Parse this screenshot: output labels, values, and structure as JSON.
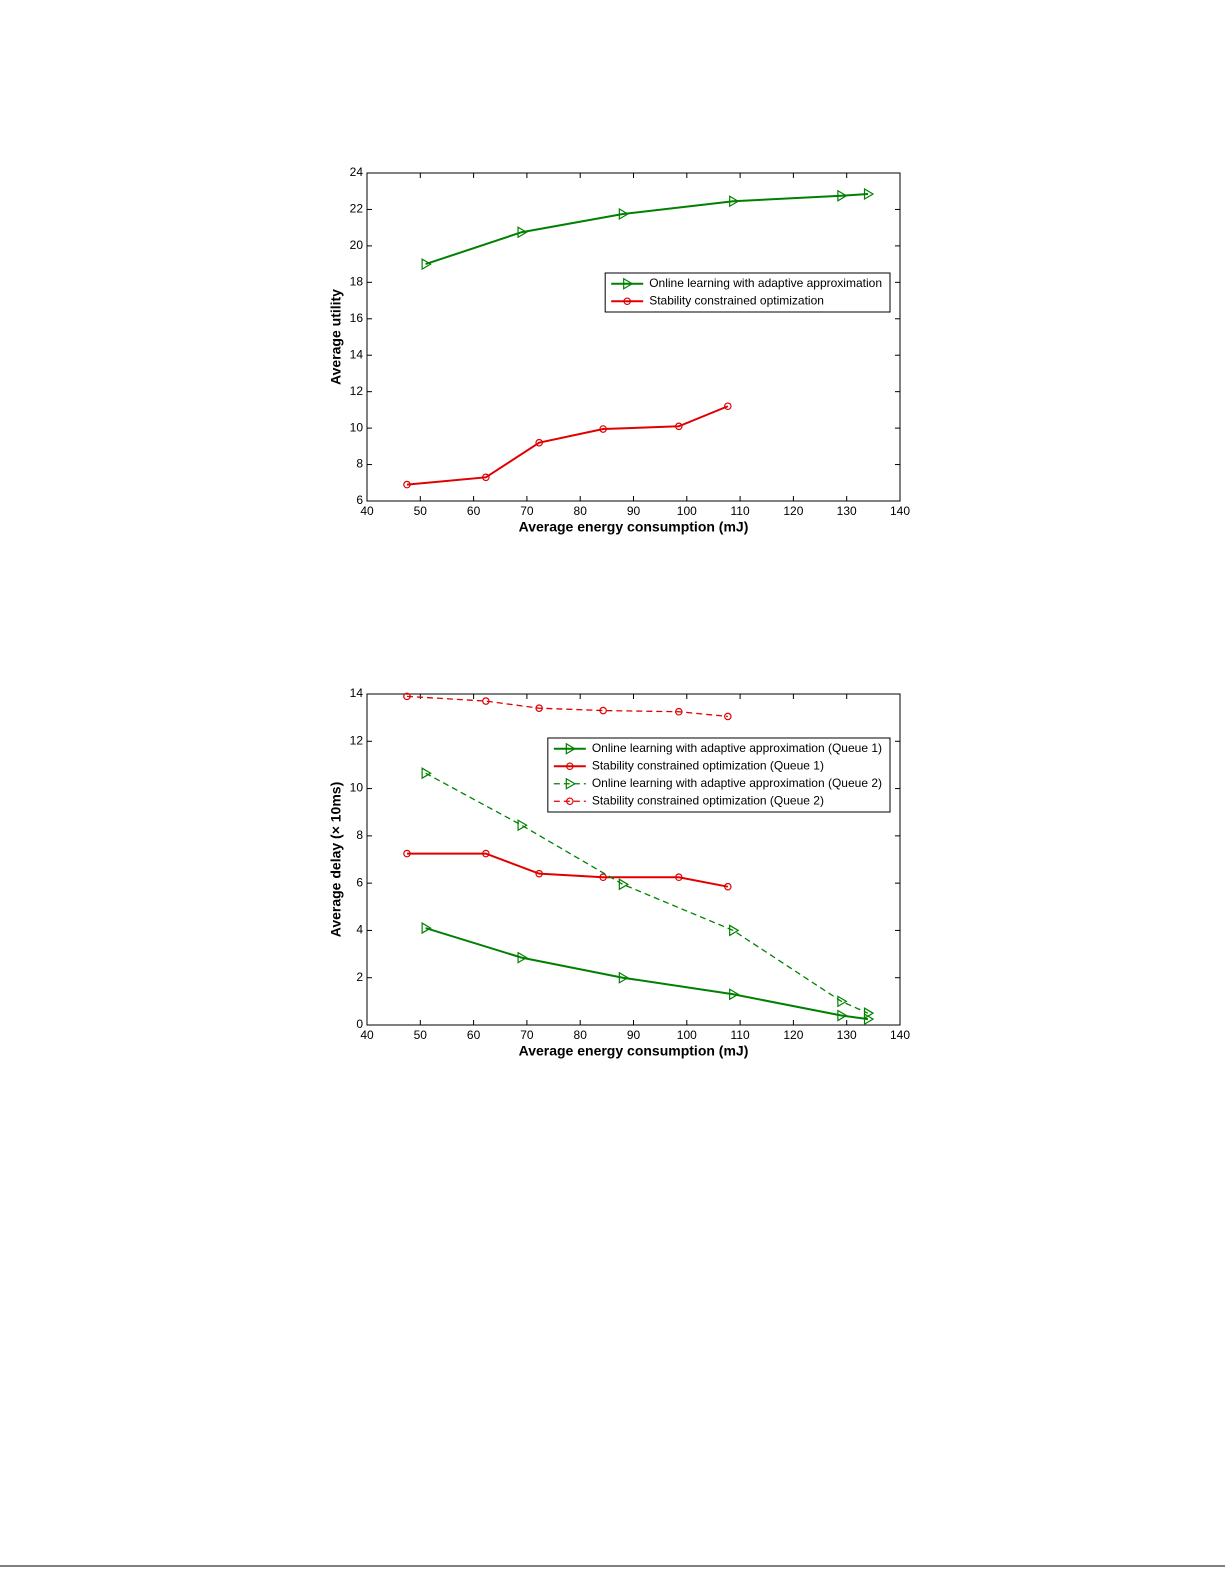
{
  "chart_data": [
    {
      "type": "line",
      "xlabel": "Average energy consumption (mJ)",
      "ylabel": "Average utility",
      "xlim": [
        40,
        140
      ],
      "xticks": [
        40,
        50,
        60,
        70,
        80,
        90,
        100,
        110,
        120,
        130,
        140
      ],
      "ylim": [
        6,
        24
      ],
      "yticks": [
        6,
        8,
        10,
        12,
        14,
        16,
        18,
        20,
        22,
        24
      ],
      "legend": "center right",
      "series": [
        {
          "name": "Online learning with adaptive approximation",
          "color": "#008000",
          "marker": "triangle-right",
          "linestyle": "solid",
          "x": [
            51,
            69,
            88,
            108.7,
            129,
            134
          ],
          "values": [
            19.0,
            20.75,
            21.75,
            22.45,
            22.75,
            22.85
          ]
        },
        {
          "name": "Stability constrained optimization",
          "color": "#e00000",
          "marker": "circle",
          "linestyle": "solid",
          "x": [
            47.5,
            62.3,
            72.3,
            84.3,
            98.5,
            107.7
          ],
          "values": [
            6.9,
            7.3,
            9.2,
            9.95,
            10.1,
            11.2
          ]
        }
      ]
    },
    {
      "type": "line",
      "xlabel": "Average energy consumption (mJ)",
      "ylabel": "Average delay (× 10ms)",
      "xlim": [
        40,
        140
      ],
      "xticks": [
        40,
        50,
        60,
        70,
        80,
        90,
        100,
        110,
        120,
        130,
        140
      ],
      "ylim": [
        0,
        14
      ],
      "yticks": [
        0,
        2,
        4,
        6,
        8,
        10,
        12,
        14
      ],
      "legend": "upper right",
      "series": [
        {
          "name": "Online learning with adaptive approximation (Queue 1)",
          "color": "#008000",
          "marker": "triangle-right",
          "linestyle": "solid",
          "x": [
            51,
            69,
            88,
            108.7,
            129,
            134
          ],
          "values": [
            4.1,
            2.85,
            2.0,
            1.3,
            0.4,
            0.25
          ]
        },
        {
          "name": "Stability constrained optimization (Queue 1)",
          "color": "#e00000",
          "marker": "circle",
          "linestyle": "solid",
          "x": [
            47.5,
            62.3,
            72.3,
            84.3,
            98.5,
            107.7
          ],
          "values": [
            7.25,
            7.25,
            6.4,
            6.25,
            6.25,
            5.85
          ]
        },
        {
          "name": "Online learning with adaptive approximation (Queue 2)",
          "color": "#008000",
          "marker": "triangle-right",
          "linestyle": "dashed",
          "x": [
            51,
            69,
            88,
            108.7,
            129,
            134
          ],
          "values": [
            10.65,
            8.45,
            5.95,
            4.0,
            1.0,
            0.5
          ]
        },
        {
          "name": "Stability constrained optimization (Queue 2)",
          "color": "#e00000",
          "marker": "circle",
          "linestyle": "dashed",
          "x": [
            47.5,
            62.3,
            72.3,
            84.3,
            98.5,
            107.7
          ],
          "values": [
            13.9,
            13.7,
            13.4,
            13.3,
            13.25,
            13.05
          ]
        }
      ]
    }
  ]
}
